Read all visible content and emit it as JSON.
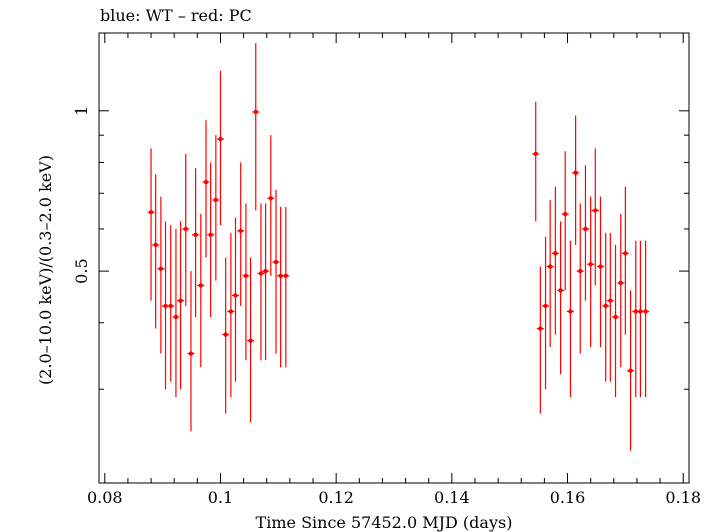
{
  "chart_data": {
    "type": "scatter",
    "title": "blue: WT – red: PC",
    "xlabel": "Time Since 57452.0 MJD (days)",
    "ylabel": "(2.0–10.0 keV)/(0.3–2.0 keV)",
    "xlim": [
      0.079,
      0.181
    ],
    "ylim": [
      0.2,
      1.4
    ],
    "ytick_scale": "log",
    "xticks": [
      0.08,
      0.1,
      0.12,
      0.14,
      0.16,
      0.18
    ],
    "xtick_labels": [
      "0.08",
      "0.1",
      "0.12",
      "0.14",
      "0.16",
      "0.18"
    ],
    "yticks": [
      0.5,
      1
    ],
    "ytick_labels": [
      "0.5",
      "1"
    ],
    "series": [
      {
        "name": "PC",
        "color": "#ff0000",
        "x": [
          0.088,
          0.0888,
          0.0897,
          0.0905,
          0.0914,
          0.0923,
          0.0931,
          0.094,
          0.0949,
          0.0957,
          0.0966,
          0.0975,
          0.0983,
          0.0992,
          0.1,
          0.1009,
          0.1018,
          0.1026,
          0.1035,
          0.1044,
          0.1052,
          0.1061,
          0.107,
          0.1078,
          0.1087,
          0.1096,
          0.1104,
          0.1113,
          0.1545,
          0.1553,
          0.1562,
          0.157,
          0.1579,
          0.1588,
          0.1596,
          0.1605,
          0.1614,
          0.1622,
          0.1631,
          0.164,
          0.1648,
          0.1657,
          0.1666,
          0.1674,
          0.1683,
          0.1692,
          0.17,
          0.1709,
          0.1718,
          0.1726,
          0.1735
        ],
        "y": [
          0.645,
          0.56,
          0.505,
          0.43,
          0.43,
          0.41,
          0.44,
          0.6,
          0.35,
          0.585,
          0.47,
          0.735,
          0.585,
          0.68,
          0.885,
          0.38,
          0.42,
          0.45,
          0.595,
          0.49,
          0.37,
          0.995,
          0.495,
          0.5,
          0.685,
          0.52,
          0.49,
          0.49,
          0.83,
          0.39,
          0.43,
          0.51,
          0.54,
          0.46,
          0.64,
          0.42,
          0.765,
          0.5,
          0.6,
          0.515,
          0.65,
          0.51,
          0.43,
          0.44,
          0.41,
          0.475,
          0.54,
          0.325,
          0.42,
          0.42,
          0.42
        ],
        "y_low": [
          0.44,
          0.39,
          0.35,
          0.3,
          0.31,
          0.29,
          0.3,
          0.43,
          0.25,
          0.41,
          0.33,
          0.53,
          0.41,
          0.48,
          0.61,
          0.27,
          0.29,
          0.31,
          0.43,
          0.34,
          0.26,
          0.65,
          0.34,
          0.34,
          0.49,
          0.35,
          0.33,
          0.33,
          0.62,
          0.27,
          0.3,
          0.36,
          0.38,
          0.32,
          0.46,
          0.29,
          0.56,
          0.35,
          0.44,
          0.36,
          0.47,
          0.36,
          0.31,
          0.31,
          0.29,
          0.33,
          0.38,
          0.23,
          0.29,
          0.29,
          0.29
        ],
        "y_high": [
          0.85,
          0.76,
          0.69,
          0.62,
          0.61,
          0.6,
          0.62,
          0.83,
          0.5,
          0.78,
          0.64,
          0.96,
          0.8,
          0.9,
          1.19,
          0.53,
          0.59,
          0.63,
          0.8,
          0.67,
          0.53,
          1.34,
          0.67,
          0.67,
          0.9,
          0.71,
          0.66,
          0.66,
          1.04,
          0.51,
          0.58,
          0.68,
          0.72,
          0.62,
          0.84,
          0.57,
          0.98,
          0.67,
          0.79,
          0.69,
          0.85,
          0.69,
          0.59,
          0.59,
          0.56,
          0.64,
          0.72,
          0.46,
          0.57,
          0.57,
          0.57
        ]
      }
    ]
  }
}
